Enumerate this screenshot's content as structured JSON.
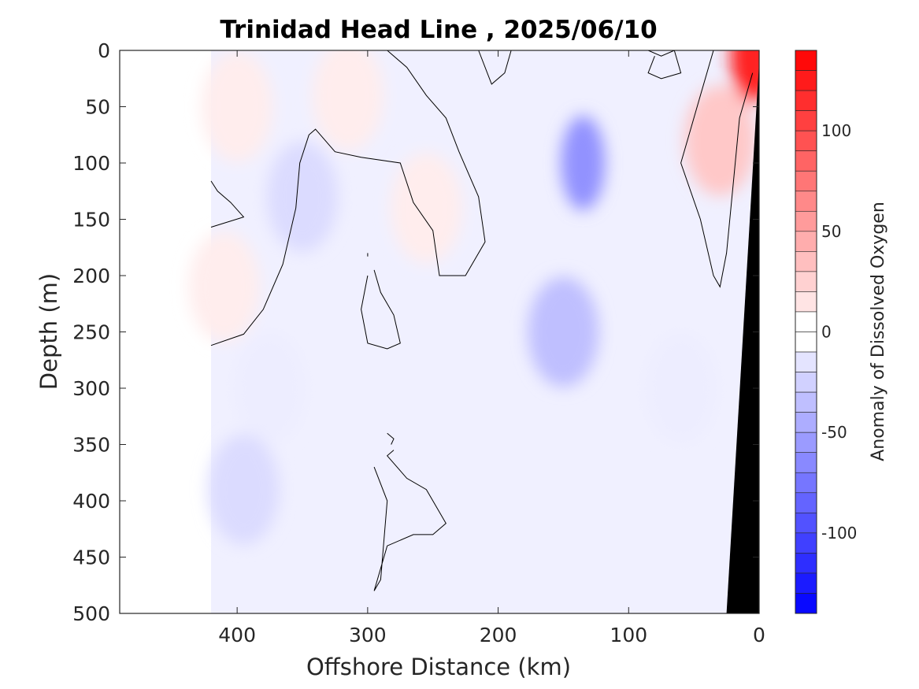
{
  "chart_data": {
    "type": "heatmap",
    "title": "Trinidad Head Line , 2025/06/10",
    "xlabel": "Offshore Distance (km)",
    "ylabel": "Depth (m)",
    "xlim": [
      490,
      0
    ],
    "ylim": [
      0,
      500
    ],
    "x_reversed": true,
    "y_reversed": true,
    "xticks": [
      400,
      300,
      200,
      100,
      0
    ],
    "yticks": [
      0,
      50,
      100,
      150,
      200,
      250,
      300,
      350,
      400,
      450,
      500
    ],
    "data_x_range": [
      420,
      0
    ],
    "colorbar": {
      "label": "Anomaly of Dissolved Oxygen",
      "range": [
        -140,
        140
      ],
      "ticks": [
        100,
        50,
        0,
        -50,
        -100
      ],
      "colors": {
        "negative": "#0000ff",
        "zero": "#ffffff",
        "positive": "#ff0000"
      }
    },
    "anomaly_features": [
      {
        "sign": "negative",
        "center_x_km": 135,
        "center_depth_m": 100,
        "value": -60
      },
      {
        "sign": "negative",
        "center_x_km": 150,
        "center_depth_m": 250,
        "value": -35
      },
      {
        "sign": "negative",
        "center_x_km": 350,
        "center_depth_m": 130,
        "value": -20
      },
      {
        "sign": "negative",
        "center_x_km": 375,
        "center_depth_m": 300,
        "value": -10
      },
      {
        "sign": "negative",
        "center_x_km": 395,
        "center_depth_m": 390,
        "value": -20
      },
      {
        "sign": "negative",
        "center_x_km": 60,
        "center_depth_m": 300,
        "value": -10
      },
      {
        "sign": "positive",
        "center_x_km": 5,
        "center_depth_m": 5,
        "value": 120
      },
      {
        "sign": "positive",
        "center_x_km": 30,
        "center_depth_m": 80,
        "value": 30
      },
      {
        "sign": "positive",
        "center_x_km": 400,
        "center_depth_m": 50,
        "value": 10
      },
      {
        "sign": "positive",
        "center_x_km": 315,
        "center_depth_m": 40,
        "value": 10
      },
      {
        "sign": "positive",
        "center_x_km": 255,
        "center_depth_m": 140,
        "value": 10
      },
      {
        "sign": "positive",
        "center_x_km": 410,
        "center_depth_m": 210,
        "value": 10
      }
    ],
    "zero_contours": [
      [
        [
          420,
          116
        ],
        [
          415,
          125
        ],
        [
          405,
          135
        ],
        [
          395,
          148
        ],
        [
          420,
          157
        ]
      ],
      [
        [
          420,
          262
        ],
        [
          395,
          252
        ],
        [
          380,
          230
        ],
        [
          365,
          190
        ],
        [
          355,
          140
        ],
        [
          352,
          100
        ],
        [
          345,
          75
        ],
        [
          340,
          70
        ],
        [
          325,
          90
        ],
        [
          305,
          95
        ],
        [
          275,
          100
        ],
        [
          265,
          135
        ],
        [
          250,
          160
        ],
        [
          245,
          200
        ],
        [
          225,
          200
        ],
        [
          210,
          170
        ],
        [
          215,
          130
        ],
        [
          230,
          90
        ],
        [
          240,
          60
        ],
        [
          255,
          40
        ],
        [
          270,
          15
        ],
        [
          285,
          0
        ]
      ],
      [
        [
          215,
          0
        ],
        [
          205,
          30
        ],
        [
          195,
          20
        ],
        [
          190,
          0
        ]
      ],
      [
        [
          85,
          0
        ],
        [
          75,
          5
        ],
        [
          65,
          0
        ],
        [
          60,
          20
        ],
        [
          75,
          25
        ],
        [
          85,
          20
        ],
        [
          80,
          5
        ]
      ],
      [
        [
          35,
          0
        ],
        [
          45,
          40
        ],
        [
          55,
          80
        ],
        [
          60,
          100
        ],
        [
          45,
          150
        ],
        [
          35,
          200
        ],
        [
          30,
          210
        ],
        [
          25,
          180
        ],
        [
          20,
          120
        ],
        [
          15,
          60
        ],
        [
          5,
          20
        ]
      ],
      [
        [
          300,
          180
        ],
        [
          300,
          183
        ]
      ],
      [
        [
          295,
          195
        ],
        [
          290,
          215
        ],
        [
          280,
          235
        ],
        [
          275,
          260
        ],
        [
          285,
          265
        ],
        [
          300,
          260
        ],
        [
          305,
          230
        ],
        [
          300,
          200
        ]
      ],
      [
        [
          285,
          340
        ],
        [
          280,
          345
        ],
        [
          282,
          350
        ]
      ],
      [
        [
          280,
          355
        ],
        [
          285,
          360
        ],
        [
          270,
          380
        ],
        [
          255,
          390
        ],
        [
          240,
          420
        ],
        [
          250,
          430
        ],
        [
          265,
          430
        ],
        [
          285,
          440
        ],
        [
          295,
          480
        ],
        [
          290,
          470
        ],
        [
          285,
          400
        ],
        [
          295,
          370
        ]
      ]
    ],
    "bathymetry": [
      [
        0,
        10
      ],
      [
        0,
        500
      ],
      [
        25,
        500
      ]
    ]
  }
}
